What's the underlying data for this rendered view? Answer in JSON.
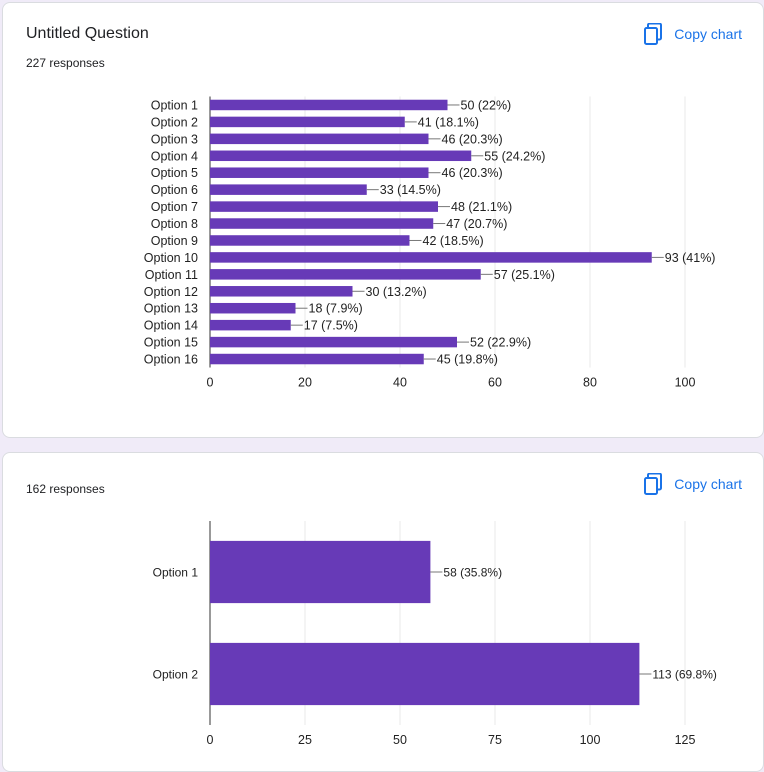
{
  "colors": {
    "bar": "#673ab7",
    "accent": "#1a73e8",
    "grid": "#e8e8e8",
    "axis": "#333333"
  },
  "cards": [
    {
      "title": "Untitled Question",
      "responses": "227 responses",
      "copy_label": "Copy chart",
      "copy_icon": "copy-icon"
    },
    {
      "title": "",
      "responses": "162 responses",
      "copy_label": "Copy chart",
      "copy_icon": "copy-icon"
    }
  ],
  "chart_data": [
    {
      "type": "bar",
      "orientation": "horizontal",
      "categories": [
        "Option 1",
        "Option 2",
        "Option 3",
        "Option 4",
        "Option 5",
        "Option 6",
        "Option 7",
        "Option 8",
        "Option 9",
        "Option 10",
        "Option 11",
        "Option 12",
        "Option 13",
        "Option 14",
        "Option 15",
        "Option 16"
      ],
      "values": [
        50,
        41,
        46,
        55,
        46,
        33,
        48,
        47,
        42,
        93,
        57,
        30,
        18,
        17,
        52,
        45
      ],
      "data_labels": [
        "50 (22%)",
        "41 (18.1%)",
        "46 (20.3%)",
        "55 (24.2%)",
        "46 (20.3%)",
        "33 (14.5%)",
        "48 (21.1%)",
        "47 (20.7%)",
        "42 (18.5%)",
        "93 (41%)",
        "57 (25.1%)",
        "30 (13.2%)",
        "18 (7.9%)",
        "17 (7.5%)",
        "52 (22.9%)",
        "45 (19.8%)"
      ],
      "xlim": [
        0,
        100
      ],
      "xticks": [
        "0",
        "20",
        "40",
        "60",
        "80",
        "100"
      ],
      "grid": true
    },
    {
      "type": "bar",
      "orientation": "horizontal",
      "categories": [
        "Option 1",
        "Option 2"
      ],
      "values": [
        58,
        113
      ],
      "data_labels": [
        "58 (35.8%)",
        "113 (69.8%)"
      ],
      "xlim": [
        0,
        125
      ],
      "xticks": [
        "0",
        "25",
        "50",
        "75",
        "100",
        "125"
      ],
      "grid": true
    }
  ]
}
